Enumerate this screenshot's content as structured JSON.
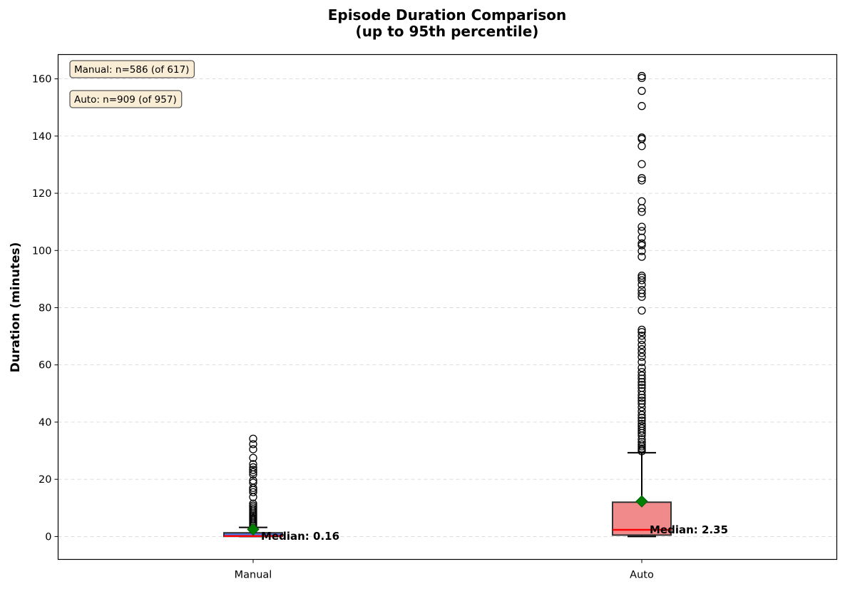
{
  "chart_data": {
    "type": "box",
    "title": "Episode Duration Comparison",
    "subtitle": "(up to 95th percentile)",
    "xlabel": "",
    "ylabel": "Duration (minutes)",
    "ylim": [
      -8,
      168.5
    ],
    "yticks": [
      0,
      20,
      40,
      60,
      80,
      100,
      120,
      140,
      160
    ],
    "grid": "y-dashed",
    "categories": [
      "Manual",
      "Auto"
    ],
    "series": [
      {
        "category": "Manual",
        "color": "#4169e1",
        "q1": 0.05,
        "median": 0.16,
        "q3": 1.3,
        "whisker_low": 0,
        "whisker_high": 3.2,
        "mean": 2.5,
        "median_label": "Median: 0.16",
        "outliers": [
          3.8,
          4.3,
          4.8,
          5.3,
          5.8,
          6.3,
          6.8,
          7.3,
          7.8,
          8.4,
          9.0,
          9.6,
          10.2,
          10.8,
          11.5,
          13.8,
          15.5,
          16.3,
          17.0,
          18.8,
          19.6,
          21.7,
          22.5,
          23.3,
          24.2,
          25.3,
          27.5,
          30.5,
          32.3,
          34.2
        ]
      },
      {
        "category": "Auto",
        "color": "#f08080",
        "q1": 0.5,
        "median": 2.35,
        "q3": 12.0,
        "whisker_low": 0,
        "whisker_high": 29.3,
        "mean": 12.3,
        "median_label": "Median: 2.35",
        "outliers": [
          29.8,
          30.3,
          30.8,
          31.5,
          32.2,
          33.0,
          34.0,
          35.3,
          36.2,
          37.0,
          37.8,
          38.6,
          39.4,
          40.5,
          41.5,
          42.5,
          43.8,
          45.2,
          46.5,
          47.5,
          48.5,
          49.5,
          50.8,
          52.0,
          53.0,
          54.0,
          55.2,
          56.3,
          57.5,
          59.0,
          61.0,
          62.8,
          64.2,
          65.5,
          67.0,
          68.7,
          70.2,
          71.5,
          72.3,
          79.0,
          83.8,
          85.0,
          86.2,
          88.0,
          89.6,
          90.5,
          91.2,
          97.8,
          99.8,
          101.8,
          102.5,
          104.5,
          106.8,
          108.3,
          113.5,
          114.8,
          117.2,
          124.5,
          125.3,
          130.2,
          136.5,
          139.0,
          139.5,
          150.5,
          155.8,
          160.3,
          161.0
        ]
      }
    ],
    "annotations": [
      "Manual: n=586 (of 617)",
      "Auto: n=909 (of 957)"
    ],
    "colors": {
      "median_line": "#ff0000",
      "mean_marker": "#008000",
      "box_edge": "#333333",
      "annotation_fill": "#f5deb3",
      "annotation_edge": "#5a5a5a"
    }
  }
}
